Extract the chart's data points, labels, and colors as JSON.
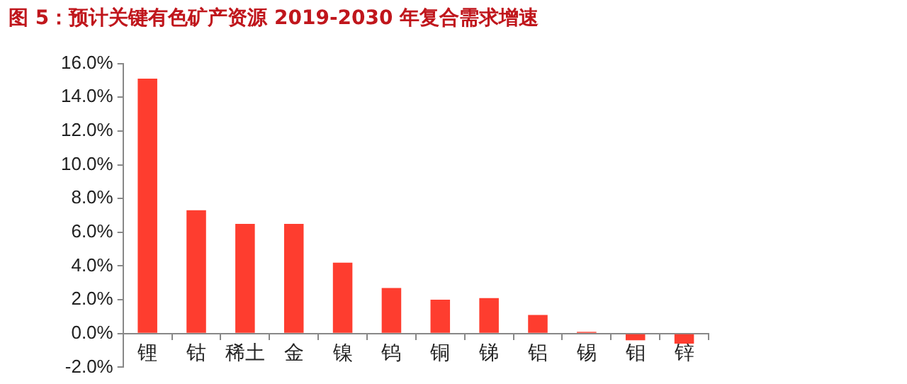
{
  "chart_data": {
    "type": "bar",
    "title": "图 5：预计关键有色矿产资源 2019-2030 年复合需求增速",
    "categories": [
      "锂",
      "钴",
      "稀土",
      "金",
      "镍",
      "钨",
      "铜",
      "锑",
      "铝",
      "锡",
      "钼",
      "锌"
    ],
    "values": [
      15.1,
      7.3,
      6.5,
      6.5,
      4.2,
      2.7,
      2.0,
      2.1,
      1.1,
      0.1,
      -0.4,
      -0.6
    ],
    "color": "#fe3d2f",
    "ylim": [
      -2,
      16
    ],
    "yticks": [
      {
        "value": -2,
        "label": "-2.0%"
      },
      {
        "value": 0,
        "label": "0.0%"
      },
      {
        "value": 2,
        "label": "2.0%"
      },
      {
        "value": 4,
        "label": "4.0%"
      },
      {
        "value": 6,
        "label": "6.0%"
      },
      {
        "value": 8,
        "label": "8.0%"
      },
      {
        "value": 10,
        "label": "10.0%"
      },
      {
        "value": 12,
        "label": "12.0%"
      },
      {
        "value": 14,
        "label": "14.0%"
      },
      {
        "value": 16,
        "label": "16.0%"
      }
    ],
    "grid": false
  }
}
